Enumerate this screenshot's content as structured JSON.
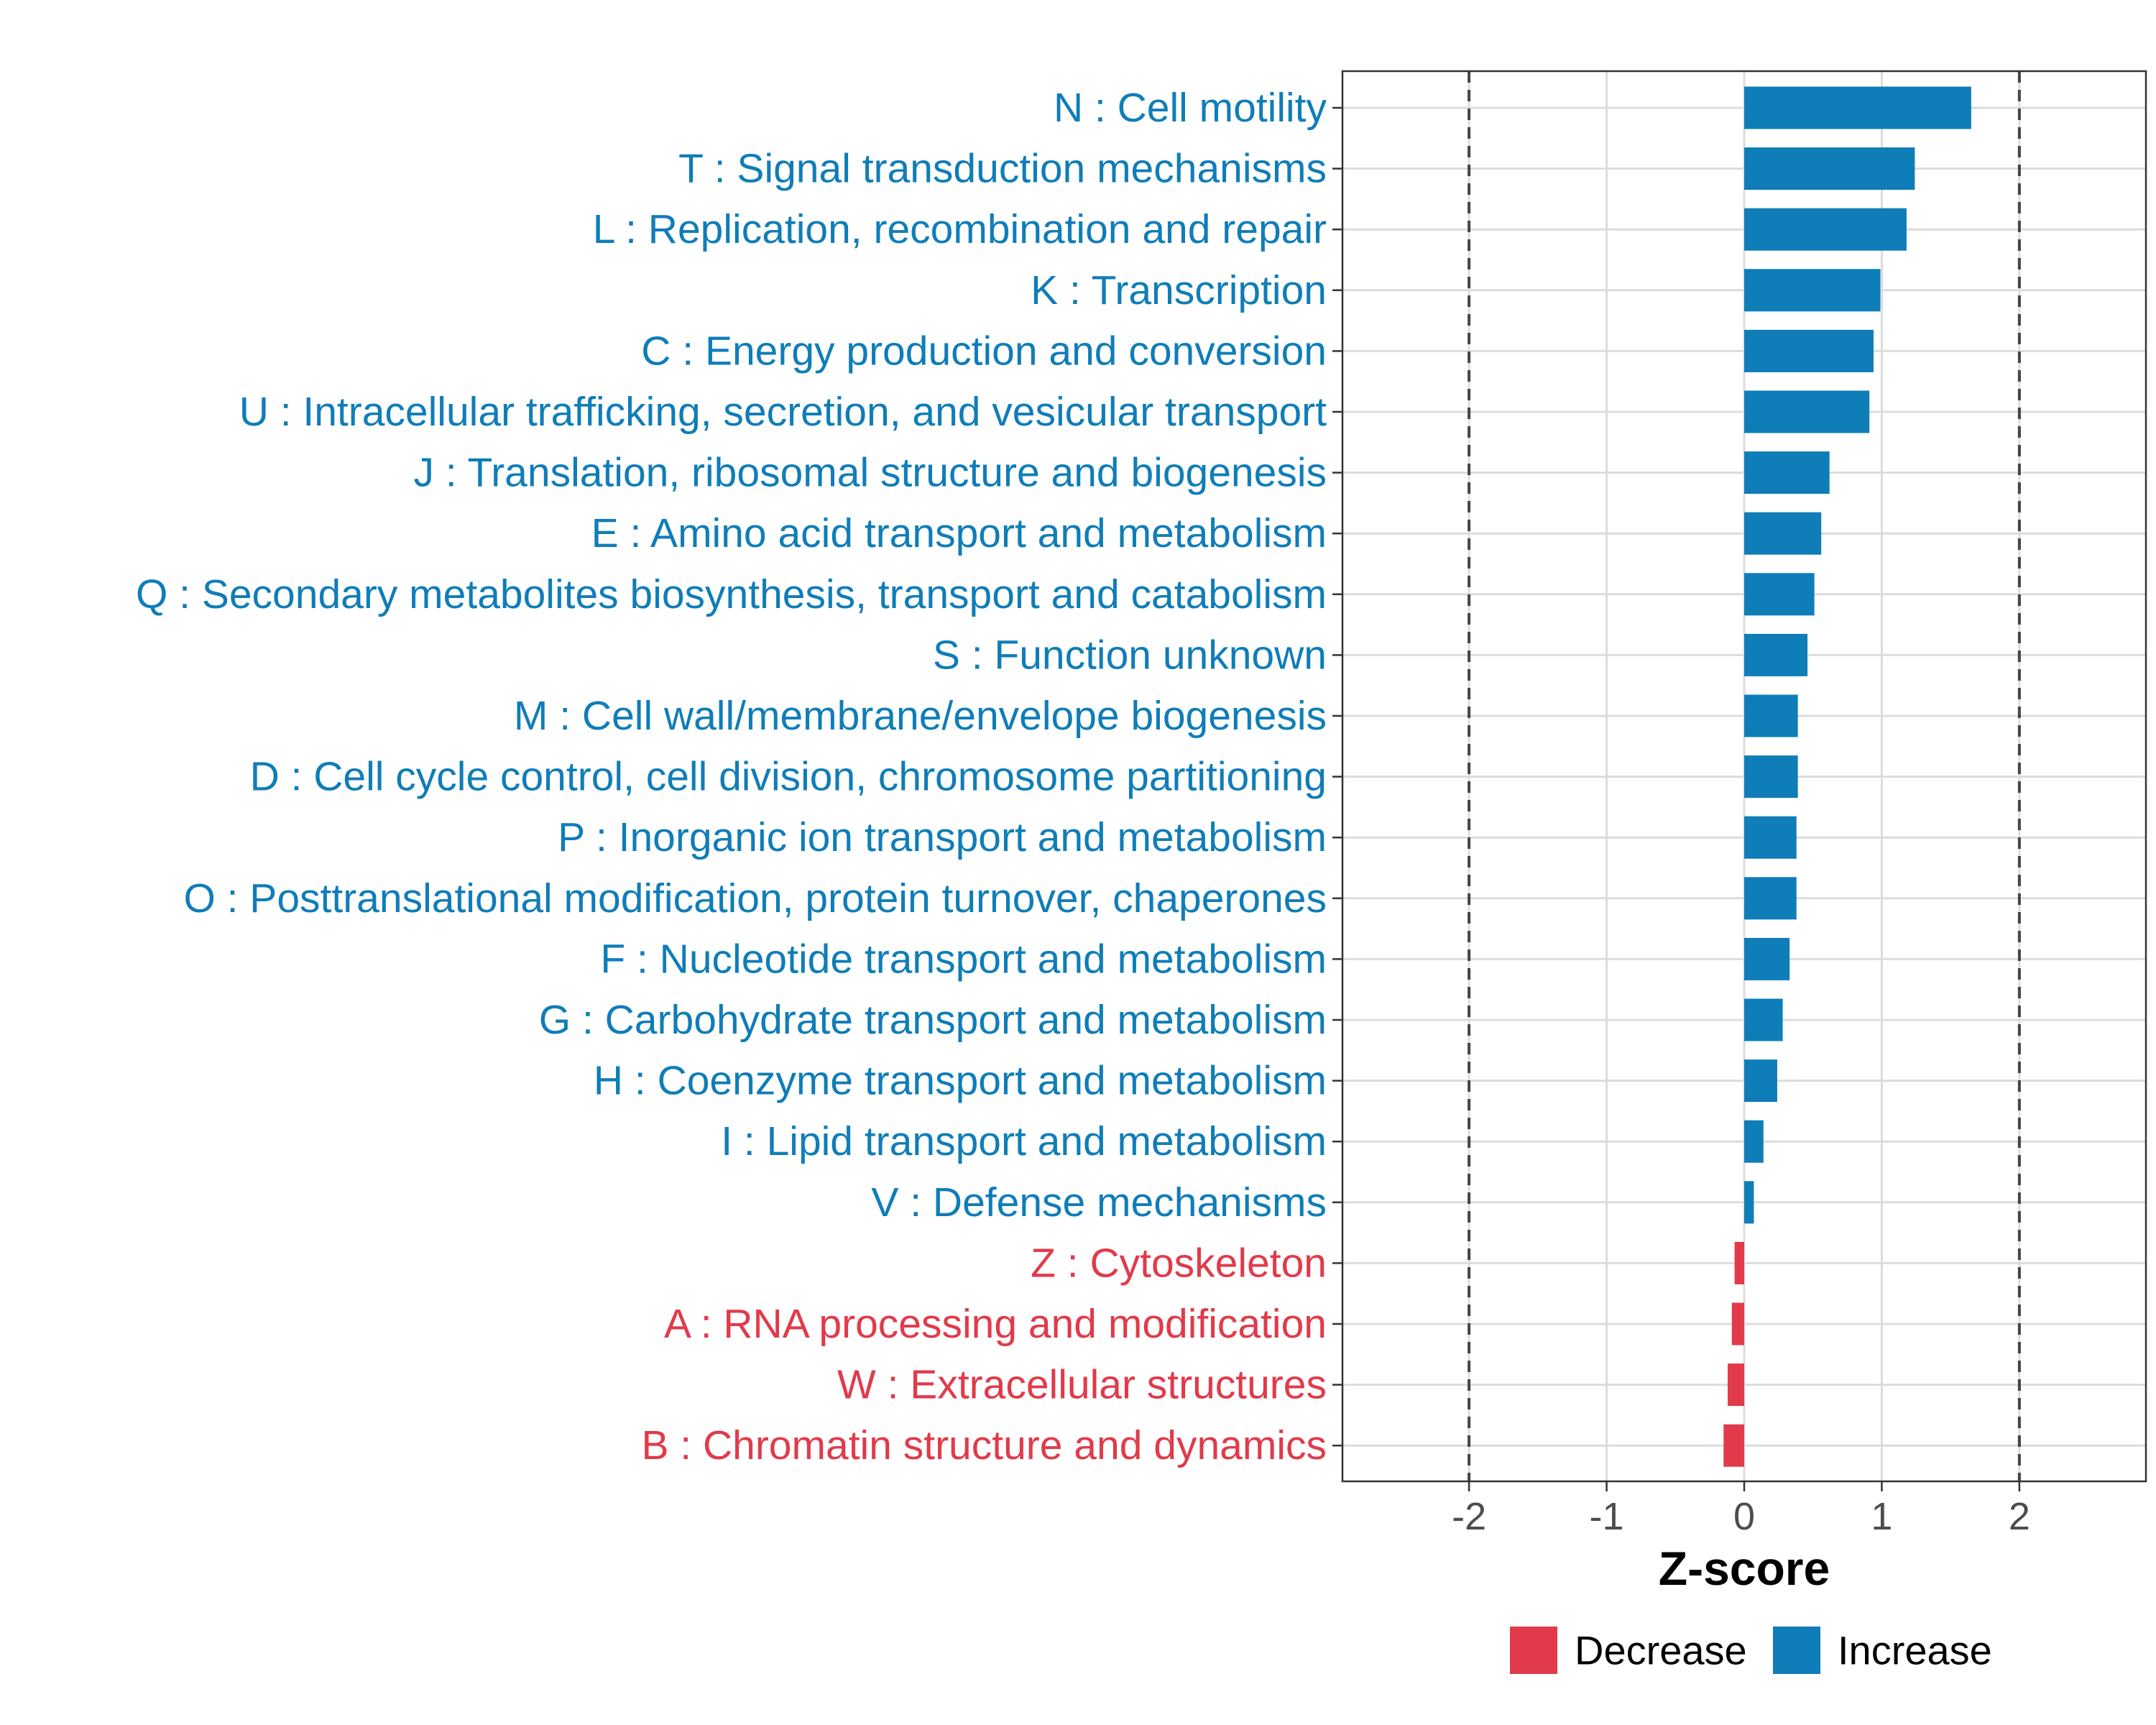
{
  "chart_data": {
    "type": "bar",
    "orientation": "horizontal",
    "title": "",
    "xlabel": "Z-score",
    "ylabel": "",
    "xlim": [
      -2.92,
      2.92
    ],
    "xticks": [
      -2,
      -1,
      0,
      1,
      2
    ],
    "xtick_labels": [
      "-2",
      "-1",
      "0",
      "1",
      "2"
    ],
    "reference_lines": [
      -2,
      2
    ],
    "grid": true,
    "legend_position": "bottom",
    "colors": {
      "Increase": "#0F7DB8",
      "Decrease": "#E13A4A"
    },
    "legend": [
      {
        "label": "Decrease",
        "color": "#E13A4A"
      },
      {
        "label": "Increase",
        "color": "#0F7DB8"
      }
    ],
    "categories": [
      {
        "label": "N : Cell motility",
        "value": 1.65,
        "group": "Increase"
      },
      {
        "label": "T : Signal transduction mechanisms",
        "value": 1.24,
        "group": "Increase"
      },
      {
        "label": "L : Replication, recombination and repair",
        "value": 1.18,
        "group": "Increase"
      },
      {
        "label": "K : Transcription",
        "value": 0.99,
        "group": "Increase"
      },
      {
        "label": "C : Energy production and conversion",
        "value": 0.94,
        "group": "Increase"
      },
      {
        "label": "U : Intracellular trafficking, secretion, and vesicular transport",
        "value": 0.91,
        "group": "Increase"
      },
      {
        "label": "J : Translation, ribosomal structure and biogenesis",
        "value": 0.62,
        "group": "Increase"
      },
      {
        "label": "E : Amino acid transport and metabolism",
        "value": 0.56,
        "group": "Increase"
      },
      {
        "label": "Q : Secondary metabolites biosynthesis, transport and catabolism",
        "value": 0.51,
        "group": "Increase"
      },
      {
        "label": "S : Function unknown",
        "value": 0.46,
        "group": "Increase"
      },
      {
        "label": "M : Cell wall/membrane/envelope biogenesis",
        "value": 0.39,
        "group": "Increase"
      },
      {
        "label": "D : Cell cycle control, cell division, chromosome partitioning",
        "value": 0.39,
        "group": "Increase"
      },
      {
        "label": "P : Inorganic ion transport and metabolism",
        "value": 0.38,
        "group": "Increase"
      },
      {
        "label": "O : Posttranslational modification, protein turnover, chaperones",
        "value": 0.38,
        "group": "Increase"
      },
      {
        "label": "F : Nucleotide transport and metabolism",
        "value": 0.33,
        "group": "Increase"
      },
      {
        "label": "G : Carbohydrate transport and metabolism",
        "value": 0.28,
        "group": "Increase"
      },
      {
        "label": "H : Coenzyme transport and metabolism",
        "value": 0.24,
        "group": "Increase"
      },
      {
        "label": "I : Lipid transport and metabolism",
        "value": 0.14,
        "group": "Increase"
      },
      {
        "label": "V : Defense mechanisms",
        "value": 0.07,
        "group": "Increase"
      },
      {
        "label": "Z : Cytoskeleton",
        "value": -0.07,
        "group": "Decrease"
      },
      {
        "label": "A : RNA processing and modification",
        "value": -0.09,
        "group": "Decrease"
      },
      {
        "label": "W : Extracellular structures",
        "value": -0.12,
        "group": "Decrease"
      },
      {
        "label": "B : Chromatin structure and dynamics",
        "value": -0.15,
        "group": "Decrease"
      }
    ]
  }
}
